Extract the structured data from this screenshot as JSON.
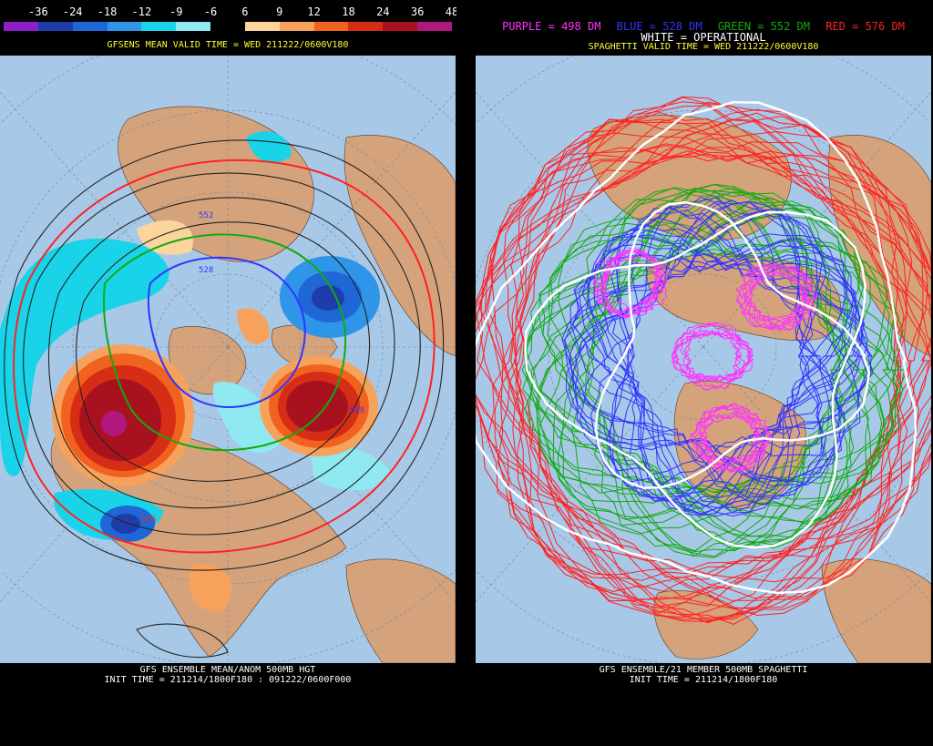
{
  "left": {
    "colorbar": {
      "ticks": [
        "-36",
        "-24",
        "-18",
        "-12",
        "-9",
        "-6",
        "6",
        "9",
        "12",
        "18",
        "24",
        "36",
        "48"
      ],
      "colors": [
        "#8c1fc9",
        "#1e3caa",
        "#1f66d6",
        "#2f95e8",
        "#19d3e8",
        "#8fe9f0",
        "#000000",
        "#fcd59c",
        "#f6a25d",
        "#f1621f",
        "#d62d17",
        "#a8121f",
        "#b01880"
      ]
    },
    "valid_title": "GFSENS MEAN VALID TIME = WED 211222/0600V180",
    "contour_labels": [
      "552",
      "528",
      "528",
      "576"
    ],
    "footer_line1": "GFS ENSEMBLE MEAN/ANOM 500MB HGT",
    "footer_line2": "INIT TIME = 211214/1800F180 : 091222/0600F000"
  },
  "right": {
    "legend": {
      "purple": "PURPLE = 498 DM",
      "blue": "BLUE = 528 DM",
      "green": "GREEN = 552 DM",
      "red": "RED = 576 DM",
      "white": "WHITE = OPERATIONAL"
    },
    "valid_title": "SPAGHETTI VALID TIME = WED 211222/0600V180",
    "footer_line1": "GFS ENSEMBLE/21 MEMBER 500MB SPAGHETTI",
    "footer_line2": "INIT TIME = 211214/1800F180"
  },
  "colors": {
    "ocean": "#a8c8e8",
    "land": "#d4a37c",
    "purple": "#ff33ff",
    "blue": "#3333ff",
    "green": "#11aa11",
    "red": "#ff2222",
    "white": "#ffffff",
    "title": "#ffff33"
  }
}
